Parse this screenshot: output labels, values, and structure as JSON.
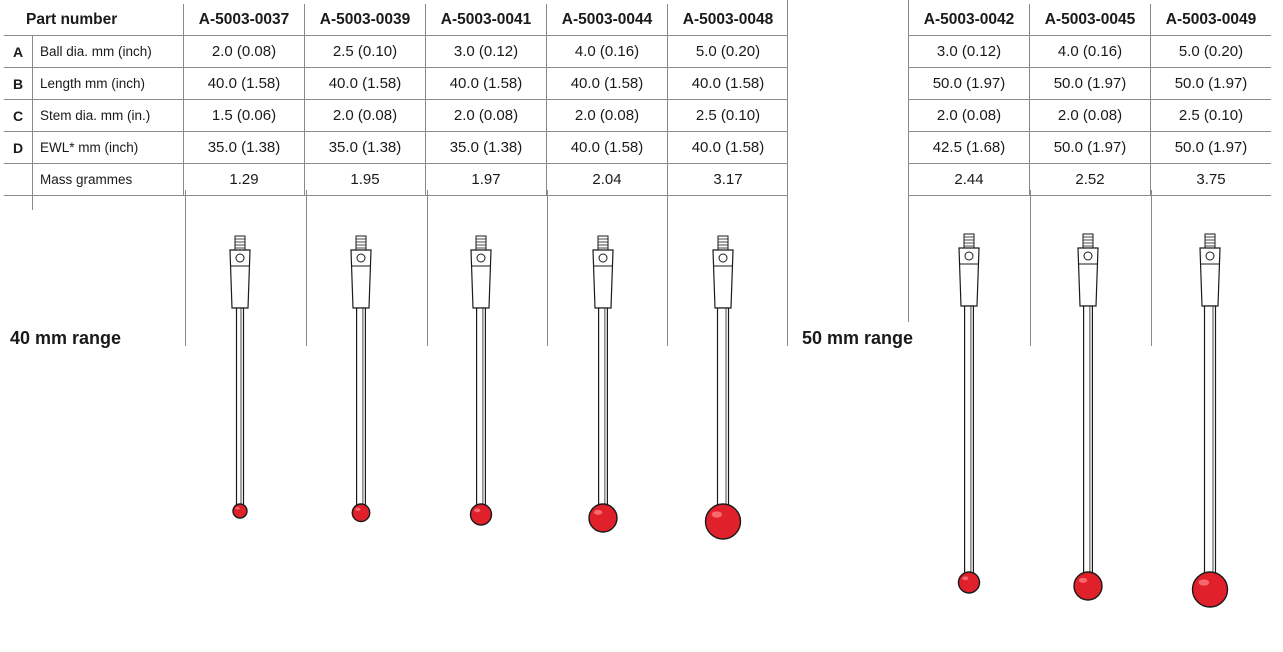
{
  "header_label": "Part number",
  "row_letters": [
    "A",
    "B",
    "C",
    "D",
    ""
  ],
  "row_labels": [
    "Ball dia. mm (inch)",
    "Length mm (inch)",
    "Stem dia. mm (in.)",
    "EWL* mm (inch)",
    "Mass grammes"
  ],
  "ranges": [
    {
      "label": "40 mm range",
      "parts": [
        {
          "part": "A-5003-0037",
          "ball": "2.0 (0.08)",
          "length": "40.0 (1.58)",
          "stem": "1.5 (0.06)",
          "ewl": "35.0 (1.38)",
          "mass": "1.29"
        },
        {
          "part": "A-5003-0039",
          "ball": "2.5 (0.10)",
          "length": "40.0 (1.58)",
          "stem": "2.0 (0.08)",
          "ewl": "35.0 (1.38)",
          "mass": "1.95"
        },
        {
          "part": "A-5003-0041",
          "ball": "3.0 (0.12)",
          "length": "40.0 (1.58)",
          "stem": "2.0 (0.08)",
          "ewl": "35.0 (1.38)",
          "mass": "1.97"
        },
        {
          "part": "A-5003-0044",
          "ball": "4.0 (0.16)",
          "length": "40.0 (1.58)",
          "stem": "2.0 (0.08)",
          "ewl": "40.0 (1.58)",
          "mass": "2.04"
        },
        {
          "part": "A-5003-0048",
          "ball": "5.0 (0.20)",
          "length": "40.0 (1.58)",
          "stem": "2.5 (0.10)",
          "ewl": "40.0 (1.58)",
          "mass": "3.17"
        }
      ]
    },
    {
      "label": "50 mm range",
      "parts": [
        {
          "part": "A-5003-0042",
          "ball": "3.0 (0.12)",
          "length": "50.0 (1.97)",
          "stem": "2.0 (0.08)",
          "ewl": "42.5 (1.68)",
          "mass": "2.44"
        },
        {
          "part": "A-5003-0045",
          "ball": "4.0 (0.16)",
          "length": "50.0 (1.97)",
          "stem": "2.0 (0.08)",
          "ewl": "50.0 (1.97)",
          "mass": "2.52"
        },
        {
          "part": "A-5003-0049",
          "ball": "5.0 (0.20)",
          "length": "50.0 (1.97)",
          "stem": "2.5 (0.10)",
          "ewl": "50.0 (1.97)",
          "mass": "3.75"
        }
      ]
    }
  ],
  "colors": {
    "ball": "#e0202a",
    "ball_highlight": "#ff8a8a",
    "stem": "#ffffff",
    "outline": "#1a1a1a",
    "rule": "#8a8a8a"
  }
}
